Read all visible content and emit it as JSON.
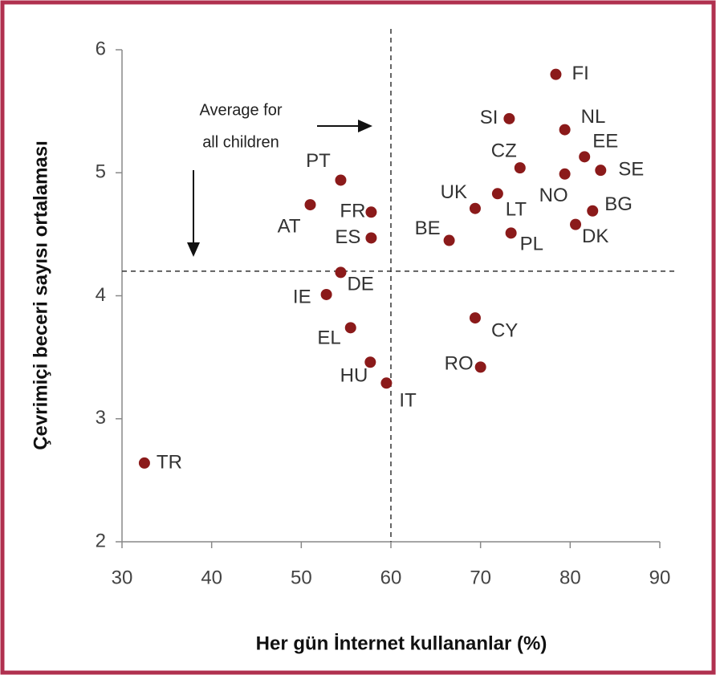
{
  "chart_data": {
    "type": "scatter",
    "x_label": "Her gün İnternet kullananlar (%)",
    "y_label": "Çevrimiçi beceri sayısı ortalaması",
    "annotation": [
      "Average for",
      "all children"
    ],
    "color": "#8b1a1a",
    "xlim": [
      30,
      90
    ],
    "xticks": [
      30,
      40,
      50,
      60,
      70,
      80,
      90
    ],
    "ylim": [
      2,
      6
    ],
    "yticks": [
      2,
      3,
      4,
      5,
      6
    ],
    "reference_lines": {
      "x": 60,
      "y": 4.2
    },
    "labels": [
      "FI",
      "SI",
      "NL",
      "EE",
      "CZ",
      "SE",
      "NO",
      "PT",
      "UK",
      "AT",
      "LT",
      "BG",
      "FR",
      "DK",
      "PL",
      "ES",
      "BE",
      "DE",
      "IE",
      "EL",
      "CY",
      "HU",
      "RO",
      "IT",
      "TR"
    ],
    "x": [
      78.4,
      73.2,
      79.4,
      81.6,
      74.4,
      83.4,
      79.4,
      54.4,
      69.4,
      51.0,
      71.9,
      82.5,
      57.8,
      80.6,
      73.4,
      57.8,
      66.5,
      54.4,
      52.8,
      55.5,
      69.4,
      57.7,
      70.0,
      59.5,
      32.5
    ],
    "y": [
      5.8,
      5.44,
      5.35,
      5.13,
      5.04,
      5.02,
      4.99,
      4.94,
      4.71,
      4.74,
      4.83,
      4.69,
      4.68,
      4.58,
      4.51,
      4.47,
      4.45,
      4.19,
      4.01,
      3.74,
      3.82,
      3.46,
      3.42,
      3.29,
      2.64
    ]
  }
}
